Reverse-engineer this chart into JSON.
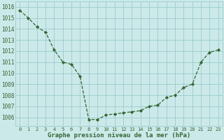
{
  "hours": [
    0,
    1,
    2,
    3,
    4,
    5,
    6,
    7,
    8,
    9,
    10,
    11,
    12,
    13,
    14,
    15,
    16,
    17,
    18,
    19,
    20,
    21,
    22,
    23
  ],
  "pressure": [
    1015.7,
    1015.0,
    1014.2,
    1013.7,
    1012.1,
    1011.0,
    1010.8,
    1009.7,
    1005.8,
    1005.8,
    1006.2,
    1006.3,
    1006.4,
    1006.5,
    1006.6,
    1007.0,
    1007.1,
    1007.8,
    1008.0,
    1008.7,
    1009.0,
    1011.0,
    1011.9,
    1012.1
  ],
  "bg_color": "#cce9e9",
  "grid_color": "#99cccc",
  "line_color": "#336633",
  "marker_color": "#336633",
  "ylabel_values": [
    1006,
    1007,
    1008,
    1009,
    1010,
    1011,
    1012,
    1013,
    1014,
    1015,
    1016
  ],
  "ylim": [
    1005.2,
    1016.5
  ],
  "xlim": [
    -0.5,
    23.5
  ],
  "xlabel_label": "Graphe pression niveau de la mer (hPa)",
  "tick_fontsize": 5.5,
  "xlabel_fontsize": 6.5
}
